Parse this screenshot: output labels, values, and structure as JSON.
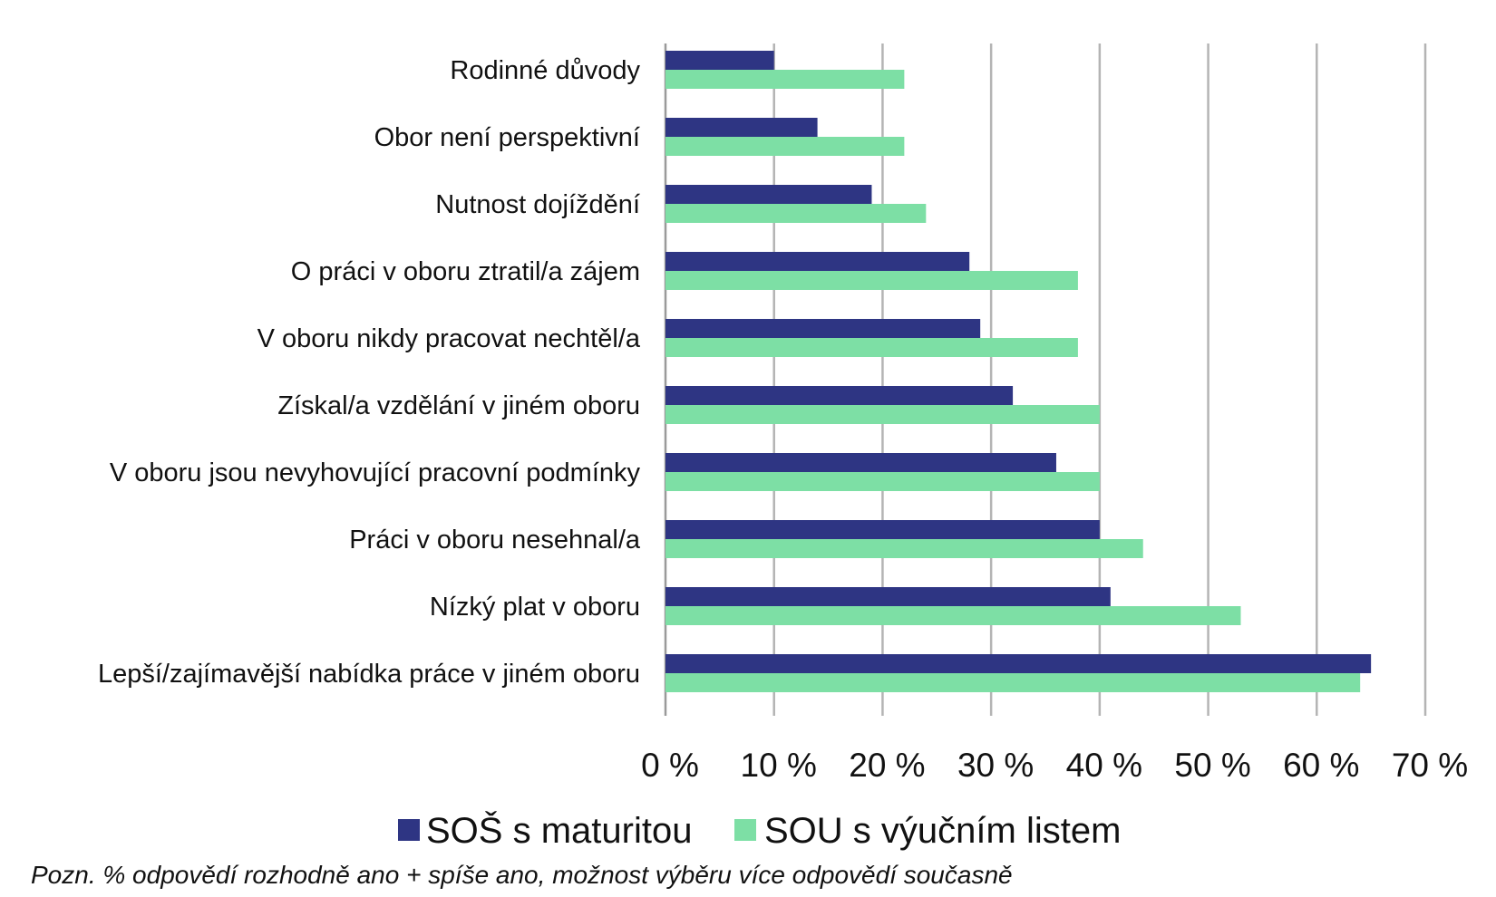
{
  "chart_data": {
    "type": "bar",
    "orientation": "horizontal",
    "categories": [
      "Rodinné důvody",
      "Obor není perspektivní",
      "Nutnost dojíždění",
      "O práci v oboru ztratil/a zájem",
      "V oboru nikdy pracovat nechtěl/a",
      "Získal/a vzdělání v jiném oboru",
      "V oboru jsou nevyhovující pracovní podmínky",
      "Práci v oboru nesehnal/a",
      "Nízký plat v oboru",
      "Lepší/zajímavější nabídka práce v jiném oboru"
    ],
    "series": [
      {
        "name": "SOŠ s maturitou",
        "color": "#2e3583",
        "values": [
          10,
          14,
          19,
          28,
          29,
          32,
          36,
          40,
          41,
          65
        ]
      },
      {
        "name": "SOU s výučním listem",
        "color": "#7ddfa5",
        "values": [
          22,
          22,
          24,
          38,
          38,
          40,
          40,
          44,
          53,
          64
        ]
      }
    ],
    "x_ticks": [
      "0 %",
      "10 %",
      "20 %",
      "30 %",
      "40 %",
      "50 %",
      "60 %",
      "70 %"
    ],
    "xlim": [
      0,
      70
    ],
    "grid": true,
    "legend": "bottom-center",
    "title": "",
    "xlabel": "",
    "ylabel": ""
  },
  "note": "Pozn. % odpovědí rozhodně ano + spíše ano, možnost výběru více odpovědí současně"
}
